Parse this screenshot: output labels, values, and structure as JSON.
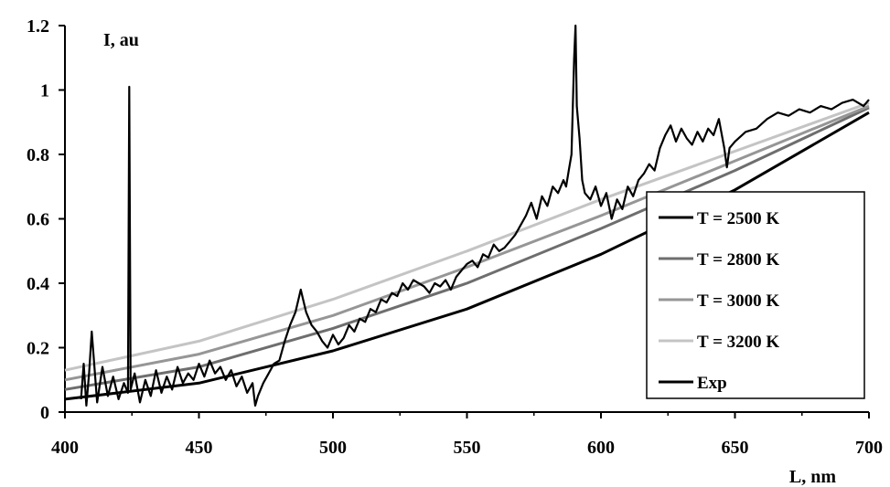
{
  "chart_data": {
    "type": "line",
    "xlabel": "L, nm",
    "ylabel": "I, au",
    "xlim": [
      400,
      700
    ],
    "ylim": [
      0,
      1.2
    ],
    "x_ticks": [
      "400",
      "450",
      "500",
      "550",
      "600",
      "650",
      "700"
    ],
    "y_ticks": [
      "0",
      "0.2",
      "0.4",
      "0.6",
      "0.8",
      "1",
      "1.2"
    ],
    "grid": false,
    "legend_position": "right",
    "series": [
      {
        "name": "T = 2500 K",
        "color": "#000000",
        "x": [
          400,
          450,
          500,
          550,
          600,
          650,
          700
        ],
        "y": [
          0.04,
          0.09,
          0.19,
          0.32,
          0.49,
          0.69,
          0.93
        ]
      },
      {
        "name": "T = 2800 K",
        "color": "#6e6e6e",
        "x": [
          400,
          450,
          500,
          550,
          600,
          650,
          700
        ],
        "y": [
          0.07,
          0.14,
          0.26,
          0.4,
          0.57,
          0.75,
          0.945
        ]
      },
      {
        "name": "T = 3000 K",
        "color": "#969696",
        "x": [
          400,
          450,
          500,
          550,
          600,
          650,
          700
        ],
        "y": [
          0.1,
          0.18,
          0.3,
          0.45,
          0.61,
          0.78,
          0.95
        ]
      },
      {
        "name": "T = 3200 K",
        "color": "#c4c4c4",
        "x": [
          400,
          450,
          500,
          550,
          600,
          650,
          700
        ],
        "y": [
          0.13,
          0.22,
          0.35,
          0.5,
          0.66,
          0.81,
          0.96
        ]
      },
      {
        "name": "Exp",
        "color": "#000000",
        "x": [
          406,
          407,
          408,
          409,
          410,
          412,
          414,
          416,
          418,
          420,
          422,
          423.5,
          424,
          424.5,
          426,
          428,
          430,
          432,
          434,
          436,
          438,
          440,
          442,
          444,
          446,
          448,
          450,
          452,
          454,
          456,
          458,
          460,
          462,
          464,
          466,
          468,
          470,
          471,
          472,
          474,
          476,
          478,
          480,
          482,
          484,
          486,
          488,
          490,
          492,
          494,
          496,
          498,
          500,
          502,
          504,
          506,
          508,
          510,
          512,
          514,
          516,
          518,
          520,
          522,
          524,
          526,
          528,
          530,
          532,
          534,
          536,
          538,
          540,
          542,
          544,
          546,
          548,
          550,
          552,
          554,
          556,
          558,
          560,
          562,
          564,
          566,
          568,
          570,
          572,
          574,
          576,
          578,
          580,
          582,
          584,
          586,
          587,
          588,
          589,
          590,
          590.5,
          591,
          592,
          593,
          594,
          596,
          598,
          600,
          602,
          604,
          606,
          608,
          610,
          612,
          614,
          616,
          618,
          620,
          622,
          624,
          626,
          628,
          630,
          632,
          634,
          636,
          638,
          640,
          642,
          644,
          646,
          647,
          648,
          650,
          654,
          658,
          662,
          666,
          670,
          674,
          678,
          682,
          686,
          690,
          694,
          698,
          700
        ],
        "y": [
          0.04,
          0.15,
          0.02,
          0.12,
          0.25,
          0.03,
          0.14,
          0.05,
          0.11,
          0.04,
          0.09,
          0.06,
          1.01,
          0.07,
          0.12,
          0.03,
          0.1,
          0.05,
          0.13,
          0.06,
          0.11,
          0.07,
          0.14,
          0.09,
          0.12,
          0.1,
          0.15,
          0.11,
          0.16,
          0.12,
          0.14,
          0.1,
          0.13,
          0.08,
          0.11,
          0.06,
          0.09,
          0.02,
          0.05,
          0.09,
          0.12,
          0.15,
          0.16,
          0.22,
          0.27,
          0.31,
          0.38,
          0.31,
          0.27,
          0.25,
          0.22,
          0.2,
          0.24,
          0.21,
          0.23,
          0.27,
          0.25,
          0.29,
          0.28,
          0.32,
          0.31,
          0.35,
          0.34,
          0.37,
          0.36,
          0.4,
          0.38,
          0.41,
          0.4,
          0.39,
          0.37,
          0.4,
          0.39,
          0.41,
          0.38,
          0.42,
          0.44,
          0.46,
          0.47,
          0.45,
          0.49,
          0.48,
          0.52,
          0.5,
          0.51,
          0.53,
          0.55,
          0.58,
          0.61,
          0.65,
          0.6,
          0.67,
          0.64,
          0.7,
          0.68,
          0.72,
          0.7,
          0.75,
          0.8,
          1.1,
          1.2,
          0.95,
          0.85,
          0.72,
          0.68,
          0.66,
          0.7,
          0.64,
          0.68,
          0.6,
          0.66,
          0.63,
          0.7,
          0.67,
          0.72,
          0.74,
          0.77,
          0.75,
          0.82,
          0.86,
          0.89,
          0.84,
          0.88,
          0.85,
          0.83,
          0.87,
          0.84,
          0.88,
          0.86,
          0.91,
          0.82,
          0.76,
          0.82,
          0.84,
          0.87,
          0.88,
          0.91,
          0.93,
          0.92,
          0.94,
          0.93,
          0.95,
          0.94,
          0.96,
          0.97,
          0.95,
          0.97
        ]
      }
    ]
  }
}
